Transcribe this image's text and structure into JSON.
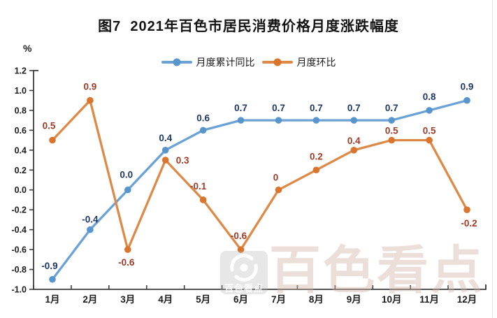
{
  "chart_data": {
    "type": "line",
    "title": "图7  2021年百色市居民消费价格月度涨跌幅度",
    "ylabel": "%",
    "categories": [
      "1月",
      "2月",
      "3月",
      "4月",
      "5月",
      "6月",
      "7月",
      "8月",
      "9月",
      "10月",
      "11月",
      "12月"
    ],
    "yticks": [
      "-1.0",
      "-0.8",
      "-0.6",
      "-0.4",
      "-0.2",
      "0.0",
      "0.2",
      "0.4",
      "0.6",
      "0.8",
      "1.0",
      "1.2"
    ],
    "ylim": [
      -1.0,
      1.2
    ],
    "grid": false,
    "legend_position": "top",
    "axis_color": "#3d3d3d",
    "series": [
      {
        "name": "月度累计同比",
        "color": "#6ba2d6",
        "marker_color": "#5795cc",
        "label_color": "#1f3864",
        "values": [
          -0.9,
          -0.4,
          0.0,
          0.4,
          0.6,
          0.7,
          0.7,
          0.7,
          0.7,
          0.7,
          0.8,
          0.9
        ],
        "labels": [
          "-0.9",
          "-0.4",
          "0.0",
          "0.4",
          "0.6",
          "0.7",
          "0.7",
          "0.7",
          "0.7",
          "0.7",
          "0.8",
          "0.9"
        ],
        "label_offsets": [
          [
            -4,
            -15
          ],
          [
            0,
            -10
          ],
          [
            -2,
            -17
          ],
          [
            0,
            -13
          ],
          [
            0,
            -13
          ],
          [
            0,
            -13
          ],
          [
            0,
            -13
          ],
          [
            0,
            -13
          ],
          [
            0,
            -13
          ],
          [
            0,
            -13
          ],
          [
            0,
            -15
          ],
          [
            0,
            -15
          ]
        ]
      },
      {
        "name": "月度环比",
        "color": "#dd8a48",
        "marker_color": "#d9752c",
        "label_color": "#9e3b26",
        "values": [
          0.5,
          0.9,
          -0.6,
          0.3,
          -0.1,
          -0.6,
          0.0,
          0.2,
          0.4,
          0.5,
          0.5,
          -0.2
        ],
        "labels": [
          "0.5",
          "0.9",
          "-0.6",
          "0.3",
          "-0.1",
          "-0.6",
          "0",
          "0.2",
          "0.4",
          "0.5",
          "0.5",
          "-0.2"
        ],
        "label_offsets": [
          [
            -5,
            -16
          ],
          [
            0,
            -15
          ],
          [
            -2,
            23
          ],
          [
            15,
            5,
            "start"
          ],
          [
            -7,
            -15
          ],
          [
            -3,
            -15
          ],
          [
            -4,
            -13
          ],
          [
            0,
            -15
          ],
          [
            0,
            -9
          ],
          [
            0,
            -9
          ],
          [
            0,
            -9
          ],
          [
            3,
            24
          ]
        ]
      }
    ]
  },
  "watermark": {
    "logo_text": "百色看点",
    "big_text": "百色看点"
  }
}
